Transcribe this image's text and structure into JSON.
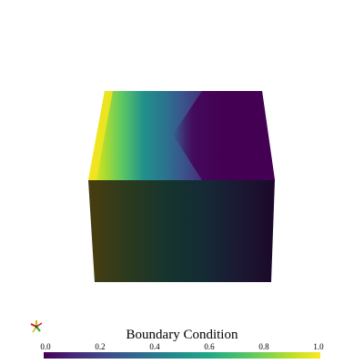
{
  "colorbar": {
    "title": "Boundary Condition",
    "ticks": [
      "0.0",
      "0.2",
      "0.4",
      "0.6",
      "0.8",
      "1.0"
    ],
    "range": [
      0.0,
      1.0
    ],
    "colormap": "viridis",
    "colors": [
      "#440154",
      "#414487",
      "#2a788e",
      "#22a884",
      "#7ad151",
      "#fde725"
    ]
  },
  "axes_widget": {
    "icon": "orientation-axes-icon",
    "colors": {
      "x": "#cc2222",
      "y": "#d6b800",
      "z": "#22aa22"
    }
  }
}
